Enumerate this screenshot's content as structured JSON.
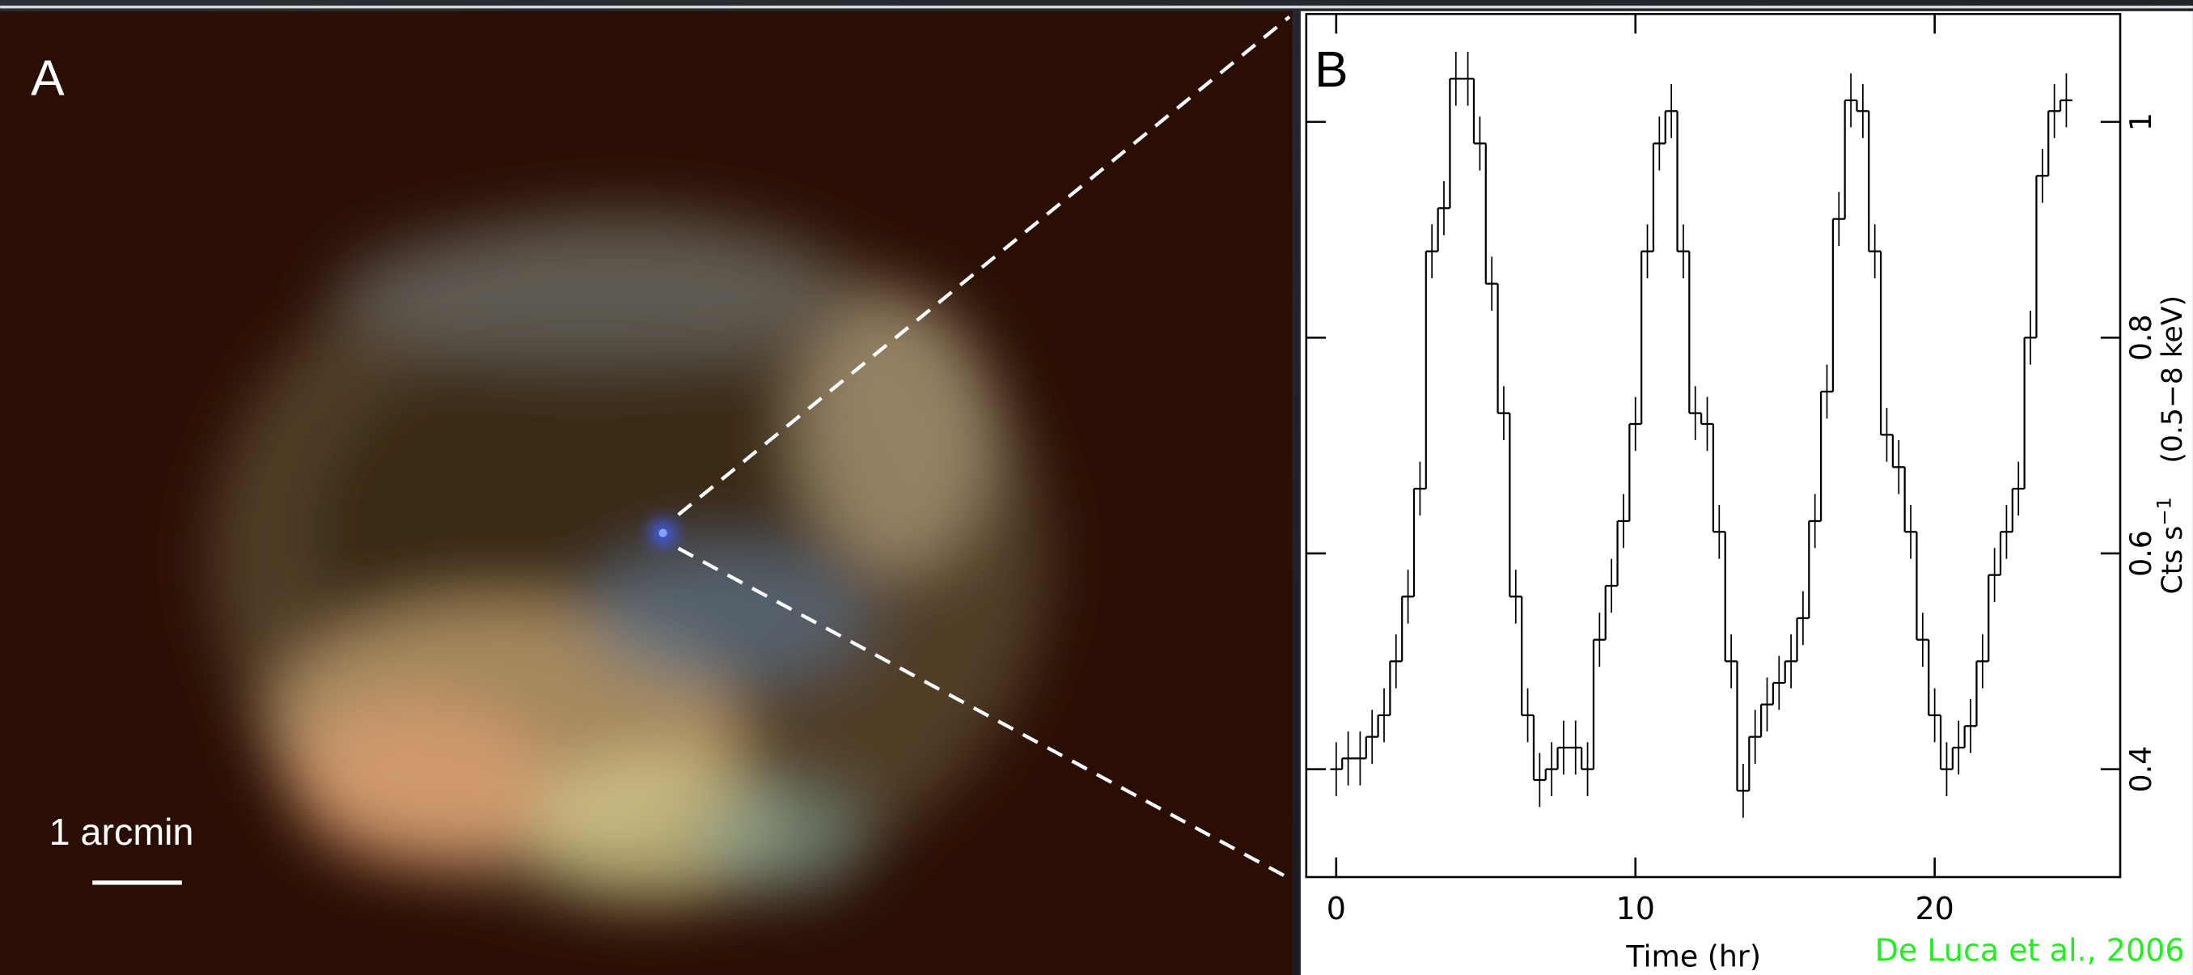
{
  "panel_a": {
    "label": "A",
    "scale_label": "1 arcmin"
  },
  "chart_data": {
    "type": "step",
    "panel_label": "B",
    "x_label": "Time (hr)",
    "y_label": {
      "main": "Cts s",
      "exp": "−1",
      "unit": "(0.5−8 keV)"
    },
    "x": [
      0,
      0.4,
      0.8,
      1.2,
      1.6,
      2.0,
      2.4,
      2.8,
      3.2,
      3.6,
      4.0,
      4.4,
      4.8,
      5.2,
      5.6,
      6.0,
      6.4,
      6.8,
      7.2,
      7.6,
      8.0,
      8.4,
      8.8,
      9.2,
      9.6,
      10.0,
      10.4,
      10.8,
      11.2,
      11.6,
      12.0,
      12.4,
      12.8,
      13.2,
      13.6,
      14.0,
      14.4,
      14.8,
      15.2,
      15.6,
      16.0,
      16.4,
      16.8,
      17.2,
      17.6,
      18.0,
      18.4,
      18.8,
      19.2,
      19.6,
      20.0,
      20.4,
      20.8,
      21.2,
      21.6,
      22.0,
      22.4,
      22.8,
      23.2,
      23.6,
      24.0,
      24.4
    ],
    "values": [
      0.4,
      0.41,
      0.41,
      0.43,
      0.45,
      0.5,
      0.56,
      0.66,
      0.88,
      0.92,
      1.04,
      1.04,
      0.98,
      0.85,
      0.73,
      0.56,
      0.45,
      0.39,
      0.4,
      0.42,
      0.42,
      0.4,
      0.52,
      0.57,
      0.63,
      0.72,
      0.88,
      0.98,
      1.01,
      0.88,
      0.73,
      0.72,
      0.62,
      0.5,
      0.38,
      0.43,
      0.46,
      0.48,
      0.5,
      0.54,
      0.63,
      0.75,
      0.91,
      1.02,
      1.01,
      0.88,
      0.71,
      0.68,
      0.62,
      0.52,
      0.45,
      0.4,
      0.42,
      0.44,
      0.5,
      0.58,
      0.62,
      0.66,
      0.8,
      0.95,
      1.01,
      1.02
    ],
    "errors": [
      0.025,
      0.025,
      0.025,
      0.025,
      0.025,
      0.025,
      0.025,
      0.025,
      0.025,
      0.025,
      0.025,
      0.025,
      0.025,
      0.025,
      0.025,
      0.025,
      0.025,
      0.025,
      0.025,
      0.025,
      0.025,
      0.025,
      0.025,
      0.025,
      0.025,
      0.025,
      0.025,
      0.025,
      0.025,
      0.025,
      0.025,
      0.025,
      0.025,
      0.025,
      0.025,
      0.025,
      0.025,
      0.025,
      0.025,
      0.025,
      0.025,
      0.025,
      0.025,
      0.025,
      0.025,
      0.025,
      0.025,
      0.025,
      0.025,
      0.025,
      0.025,
      0.025,
      0.025,
      0.025,
      0.025,
      0.025,
      0.025,
      0.025,
      0.025,
      0.025,
      0.025,
      0.025
    ],
    "color": "#000000",
    "xlim": [
      -1,
      26.2
    ],
    "xticks": [
      0,
      10,
      20
    ],
    "ylim": [
      0.3,
      1.1
    ],
    "yticks": [
      0.4,
      0.6,
      0.8,
      1
    ]
  },
  "credit": "De Luca et al., 2006"
}
